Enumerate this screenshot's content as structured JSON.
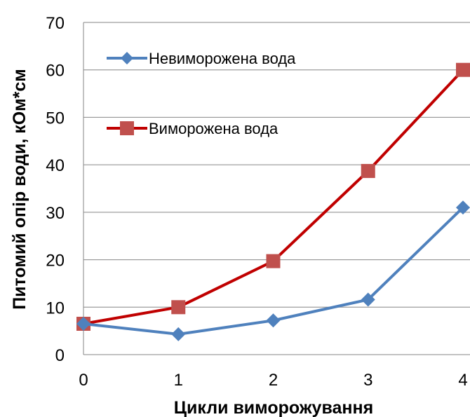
{
  "chart_data": {
    "type": "line",
    "title": "",
    "xlabel": "Цикли виморожування",
    "ylabel": "Питомий опір води, кОм*см",
    "x": [
      0,
      1,
      2,
      3,
      4
    ],
    "xlim": [
      0,
      4
    ],
    "ylim": [
      0,
      70
    ],
    "yticks": [
      0,
      10,
      20,
      30,
      40,
      50,
      60,
      70
    ],
    "grid": "horizontal",
    "legend_position": "top-left",
    "series": [
      {
        "name": "Невиморожена вода",
        "values": [
          6.5,
          4.3,
          7.2,
          11.6,
          31
        ],
        "color": "#4F81BD",
        "marker": "diamond"
      },
      {
        "name": "Виморожена вода",
        "values": [
          6.5,
          10,
          19.7,
          38.7,
          60
        ],
        "color": "#C00000",
        "marker_color": "#C0504D",
        "marker": "square"
      }
    ]
  }
}
